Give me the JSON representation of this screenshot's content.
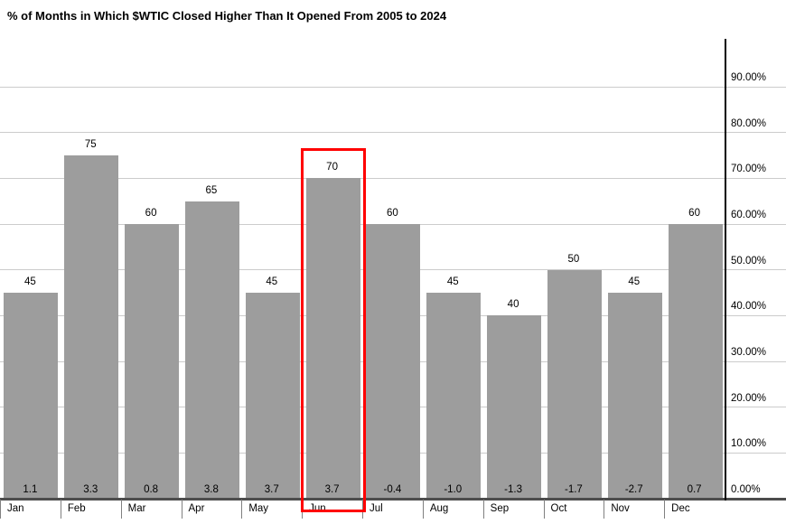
{
  "title": "% of Months in Which $WTIC Closed Higher Than It Opened From 2005 to 2024",
  "chart_data": {
    "type": "bar",
    "title": "% of Months in Which $WTIC Closed Higher Than It Opened From 2005 to 2024",
    "categories": [
      "Jan",
      "Feb",
      "Mar",
      "Apr",
      "May",
      "Jun",
      "Jul",
      "Aug",
      "Sep",
      "Oct",
      "Nov",
      "Dec"
    ],
    "series": [
      {
        "name": "percent_of_months_closed_higher",
        "values": [
          45,
          75,
          60,
          65,
          45,
          70,
          60,
          45,
          40,
          50,
          45,
          60
        ]
      },
      {
        "name": "base_row_values",
        "values": [
          1.1,
          3.3,
          0.8,
          3.8,
          3.7,
          3.7,
          -0.4,
          -1.0,
          -1.3,
          -1.7,
          -2.7,
          0.7
        ]
      }
    ],
    "bar_top_labels": [
      "45",
      "75",
      "60",
      "65",
      "45",
      "70",
      "60",
      "45",
      "40",
      "50",
      "45",
      "60"
    ],
    "bar_base_labels": [
      "1.1",
      "3.3",
      "0.8",
      "3.8",
      "3.7",
      "3.7",
      "-0.4",
      "-1.0",
      "-1.3",
      "-1.7",
      "-2.7",
      "0.7"
    ],
    "y_axis": {
      "side": "right",
      "min": 0,
      "max": 100,
      "tick_labels": [
        "0.00%",
        "10.00%",
        "20.00%",
        "30.00%",
        "40.00%",
        "50.00%",
        "60.00%",
        "70.00%",
        "80.00%",
        "90.00%"
      ]
    },
    "xlabel": "",
    "ylabel": "",
    "grid": true,
    "legend": "none",
    "highlight": {
      "category": "Jun",
      "border_color": "#ff0000"
    },
    "colors": {
      "bar": "#9d9d9d",
      "gridline": "#cccccc",
      "baseline": "#4d4d4d",
      "axis_line": "#000000",
      "tick": "#808080",
      "text": "#000000"
    }
  }
}
